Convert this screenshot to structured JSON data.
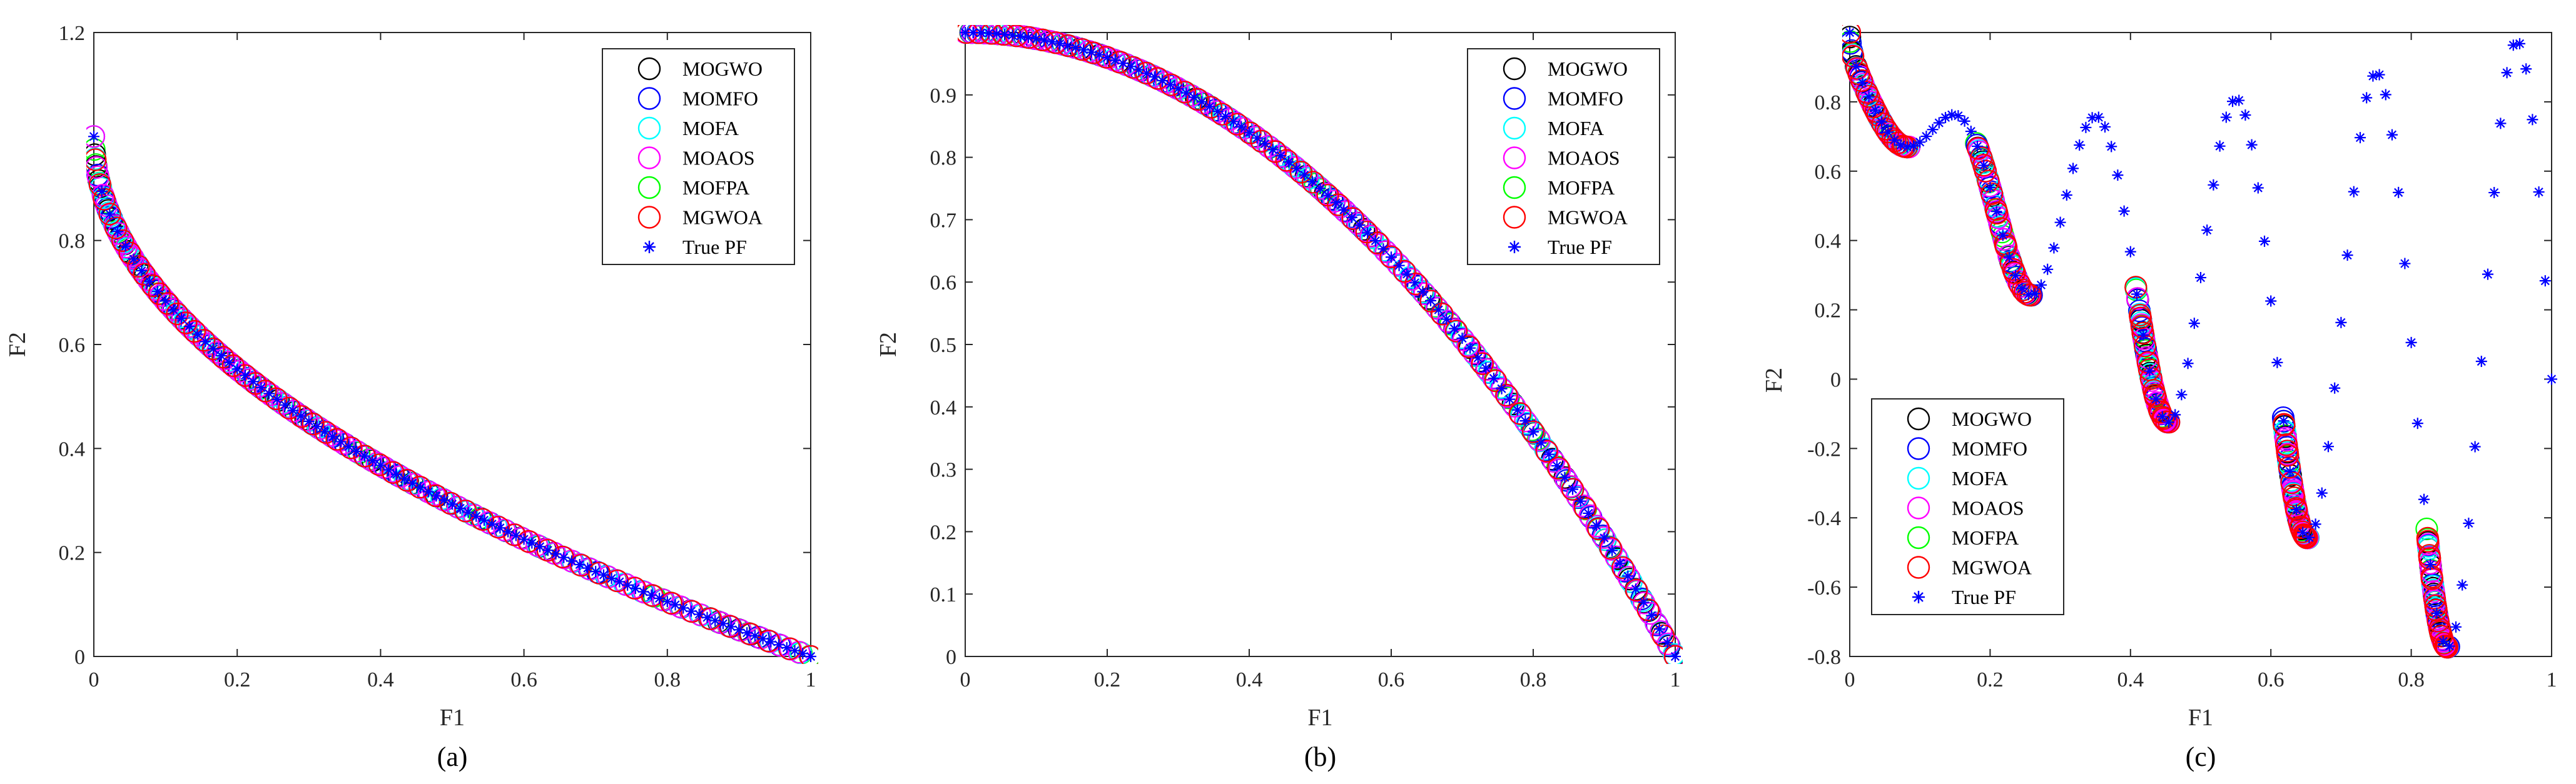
{
  "colors": {
    "MOGWO": "#000000",
    "MOMFO": "#0000ff",
    "MOFA": "#00ffff",
    "MOAOS": "#ff00ff",
    "MOFPA": "#00ff00",
    "MGWOA": "#ff0000",
    "True PF": "#0000ff"
  },
  "chart_data": [
    {
      "type": "scatter",
      "caption": "(a)",
      "title": "",
      "xlabel": "F1",
      "ylabel": "F2",
      "xlim": [
        0,
        1
      ],
      "ylim": [
        0,
        1.2
      ],
      "xticks": [
        0,
        0.2,
        0.4,
        0.6,
        0.8,
        1
      ],
      "xtick_labels": [
        "0",
        "0.2",
        "0.4",
        "0.6",
        "0.8",
        "1"
      ],
      "yticks": [
        0,
        0.2,
        0.4,
        0.6,
        0.8,
        1.2
      ],
      "ytick_labels": [
        "0",
        "0.2",
        "0.4",
        "0.6",
        "0.8",
        "1.2"
      ],
      "legend_position": "top-right",
      "series_names": [
        "MOGWO",
        "MOMFO",
        "MOFA",
        "MOAOS",
        "MOFPA",
        "MGWOA",
        "True PF"
      ],
      "curve": "zdt1",
      "x_extent": [
        0,
        1
      ]
    },
    {
      "type": "scatter",
      "caption": "(b)",
      "title": "",
      "xlabel": "F1",
      "ylabel": "F2",
      "xlim": [
        0,
        1
      ],
      "ylim": [
        0,
        1
      ],
      "xticks": [
        0,
        0.2,
        0.4,
        0.6,
        0.8,
        1
      ],
      "xtick_labels": [
        "0",
        "0.2",
        "0.4",
        "0.6",
        "0.8",
        "1"
      ],
      "yticks": [
        0,
        0.1,
        0.2,
        0.3,
        0.4,
        0.5,
        0.6,
        0.7,
        0.8,
        0.9
      ],
      "ytick_labels": [
        "0",
        "0.1",
        "0.2",
        "0.3",
        "0.4",
        "0.5",
        "0.6",
        "0.7",
        "0.8",
        "0.9"
      ],
      "legend_position": "top-right",
      "series_names": [
        "MOGWO",
        "MOMFO",
        "MOFA",
        "MOAOS",
        "MOFPA",
        "MGWOA",
        "True PF"
      ],
      "curve": "zdt2",
      "x_extent": [
        0,
        1
      ]
    },
    {
      "type": "scatter",
      "caption": "(c)",
      "title": "",
      "xlabel": "F1",
      "ylabel": "F2",
      "xlim": [
        0,
        1
      ],
      "ylim": [
        -0.8,
        1
      ],
      "xticks": [
        0,
        0.2,
        0.4,
        0.6,
        0.8,
        1
      ],
      "xtick_labels": [
        "0",
        "0.2",
        "0.4",
        "0.6",
        "0.8",
        "1"
      ],
      "yticks": [
        -0.8,
        -0.6,
        -0.4,
        -0.2,
        0,
        0.2,
        0.4,
        0.6,
        0.8
      ],
      "ytick_labels": [
        "-0.8",
        "-0.6",
        "-0.4",
        "-0.2",
        "0",
        "0.2",
        "0.4",
        "0.6",
        "0.8"
      ],
      "legend_position": "bottom-left",
      "series_names": [
        "MOGWO",
        "MOMFO",
        "MOFA",
        "MOAOS",
        "MOFPA",
        "MGWOA",
        "True PF"
      ],
      "curve": "zdt3",
      "pf_segments": [
        [
          0,
          0.083
        ],
        [
          0.1822,
          0.2577
        ],
        [
          0.4094,
          0.4539
        ],
        [
          0.6183,
          0.6525
        ],
        [
          0.8233,
          0.8518
        ]
      ]
    }
  ]
}
